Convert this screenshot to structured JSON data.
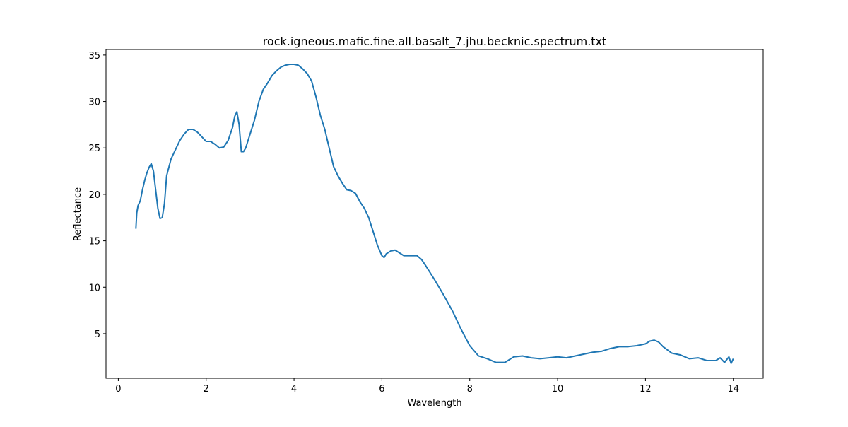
{
  "chart_data": {
    "type": "line",
    "title": "rock.igneous.mafic.fine.all.basalt_7.jhu.becknic.spectrum.txt",
    "xlabel": "Wavelength",
    "ylabel": "Reflectance",
    "x": [
      0.4,
      0.42,
      0.45,
      0.5,
      0.55,
      0.6,
      0.65,
      0.7,
      0.75,
      0.8,
      0.85,
      0.9,
      0.95,
      1.0,
      1.05,
      1.1,
      1.2,
      1.3,
      1.4,
      1.5,
      1.6,
      1.7,
      1.8,
      1.9,
      2.0,
      2.1,
      2.2,
      2.3,
      2.4,
      2.5,
      2.6,
      2.65,
      2.7,
      2.75,
      2.8,
      2.85,
      2.9,
      3.0,
      3.1,
      3.2,
      3.3,
      3.4,
      3.5,
      3.6,
      3.7,
      3.8,
      3.9,
      4.0,
      4.1,
      4.2,
      4.3,
      4.4,
      4.5,
      4.6,
      4.7,
      4.8,
      4.9,
      5.0,
      5.1,
      5.2,
      5.3,
      5.4,
      5.5,
      5.6,
      5.7,
      5.8,
      5.9,
      6.0,
      6.05,
      6.1,
      6.2,
      6.3,
      6.4,
      6.5,
      6.6,
      6.7,
      6.8,
      6.9,
      7.0,
      7.2,
      7.4,
      7.6,
      7.8,
      8.0,
      8.2,
      8.4,
      8.6,
      8.8,
      9.0,
      9.2,
      9.4,
      9.6,
      9.8,
      10.0,
      10.2,
      10.4,
      10.6,
      10.8,
      11.0,
      11.2,
      11.4,
      11.6,
      11.8,
      12.0,
      12.1,
      12.2,
      12.3,
      12.4,
      12.6,
      12.8,
      13.0,
      13.2,
      13.4,
      13.6,
      13.7,
      13.8,
      13.9,
      13.95,
      14.0
    ],
    "series": [
      {
        "color": "#1f77b4",
        "values": [
          16.3,
          18.0,
          18.8,
          19.3,
          20.5,
          21.5,
          22.3,
          22.9,
          23.3,
          22.5,
          20.5,
          18.5,
          17.4,
          17.5,
          19.0,
          22.0,
          23.8,
          24.8,
          25.8,
          26.5,
          27.0,
          27.0,
          26.7,
          26.2,
          25.7,
          25.7,
          25.4,
          25.0,
          25.1,
          25.8,
          27.2,
          28.4,
          28.9,
          27.5,
          24.6,
          24.6,
          25.0,
          26.5,
          28.0,
          30.0,
          31.3,
          32.0,
          32.8,
          33.3,
          33.7,
          33.9,
          34.0,
          34.0,
          33.9,
          33.5,
          33.0,
          32.2,
          30.5,
          28.5,
          27.0,
          25.0,
          23.0,
          22.0,
          21.2,
          20.5,
          20.4,
          20.1,
          19.2,
          18.5,
          17.5,
          16.0,
          14.5,
          13.4,
          13.2,
          13.6,
          13.9,
          14.0,
          13.7,
          13.4,
          13.4,
          13.4,
          13.4,
          13.0,
          12.3,
          10.8,
          9.2,
          7.5,
          5.5,
          3.7,
          2.6,
          2.3,
          1.9,
          1.9,
          2.5,
          2.6,
          2.4,
          2.3,
          2.4,
          2.5,
          2.4,
          2.6,
          2.8,
          3.0,
          3.1,
          3.4,
          3.6,
          3.6,
          3.7,
          3.9,
          4.2,
          4.3,
          4.1,
          3.6,
          2.9,
          2.7,
          2.3,
          2.4,
          2.1,
          2.1,
          2.4,
          1.9,
          2.5,
          1.8,
          2.3
        ]
      }
    ],
    "xlim": [
      -0.28,
      14.68
    ],
    "ylim": [
      0.2,
      35.6
    ],
    "xticks": [
      0,
      2,
      4,
      6,
      8,
      10,
      12,
      14
    ],
    "yticks": [
      5,
      10,
      15,
      20,
      25,
      30,
      35
    ]
  }
}
